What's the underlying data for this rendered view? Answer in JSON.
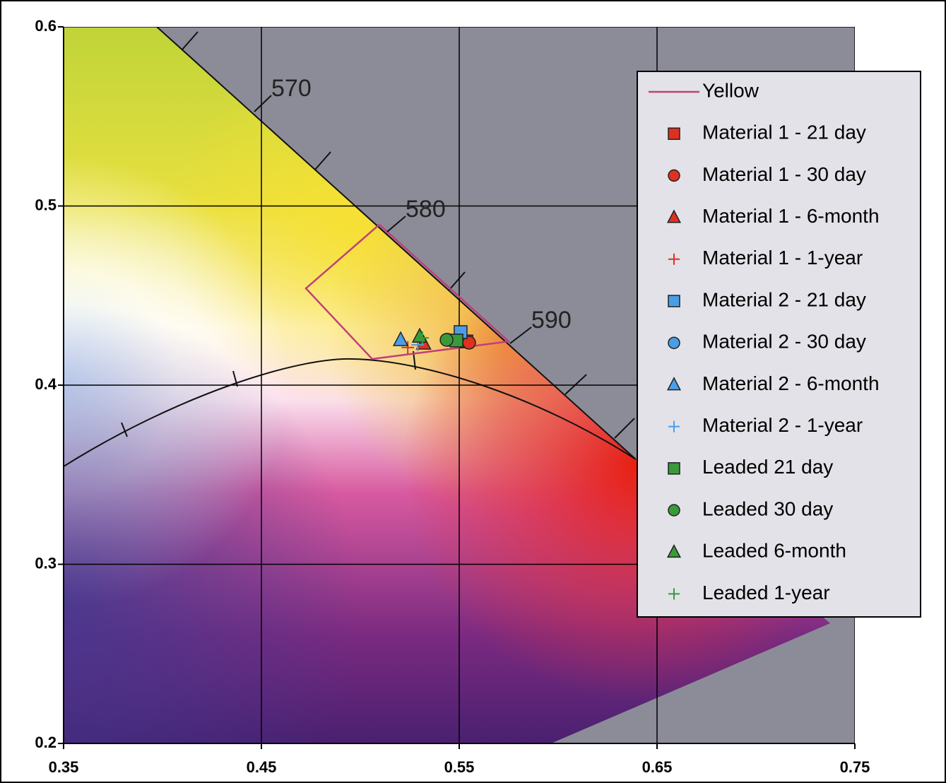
{
  "chart_data": {
    "type": "scatter",
    "xlim": [
      0.35,
      0.75
    ],
    "xticks": [
      0.35,
      0.45,
      0.55,
      0.65,
      0.75
    ],
    "ylim": [
      0.2,
      0.6
    ],
    "yticks": [
      0.2,
      0.3,
      0.4,
      0.5,
      0.6
    ],
    "grid": true,
    "legend": "upper right",
    "annotations": [
      "570",
      "580",
      "590"
    ],
    "series": [
      {
        "name": "Yellow",
        "color": "#c0407a",
        "marker": "line",
        "x": [
          0.5096,
          0.4725,
          0.506,
          0.575,
          0.5096
        ],
        "y": [
          0.4896,
          0.454,
          0.4146,
          0.4244,
          0.4896
        ]
      },
      {
        "name": "Material 1 - 21 day",
        "color": "#e0301f",
        "marker": "square",
        "x": [
          0.5536
        ],
        "y": [
          0.4244
        ]
      },
      {
        "name": "Material 1 - 30 day",
        "color": "#e0301f",
        "marker": "circle",
        "x": [
          0.555
        ],
        "y": [
          0.4237
        ]
      },
      {
        "name": "Material 1 - 6-month",
        "color": "#e0301f",
        "marker": "triangle",
        "x": [
          0.532
        ],
        "y": [
          0.4233
        ]
      },
      {
        "name": "Material 1 - 1-year",
        "color": "#e0301f",
        "marker": "plus",
        "x": [
          0.524
        ],
        "y": [
          0.421
        ]
      },
      {
        "name": "Material 2 - 21 day",
        "color": "#4a9ee8",
        "marker": "square",
        "x": [
          0.5507
        ],
        "y": [
          0.4296
        ]
      },
      {
        "name": "Material 2 - 30 day",
        "color": "#4a9ee8",
        "marker": "circle",
        "x": [
          0.544
        ],
        "y": [
          0.4253
        ]
      },
      {
        "name": "Material 2 - 6-month",
        "color": "#4a9ee8",
        "marker": "triangle",
        "x": [
          0.5204
        ],
        "y": [
          0.4253
        ]
      },
      {
        "name": "Material 2 - 1-year",
        "color": "#4a9ee8",
        "marker": "plus",
        "x": [
          0.529
        ],
        "y": [
          0.4225
        ]
      },
      {
        "name": "Leaded 21 day",
        "color": "#3a9a3a",
        "marker": "square",
        "x": [
          0.5486
        ],
        "y": [
          0.4249
        ]
      },
      {
        "name": "Leaded 30 day",
        "color": "#3a9a3a",
        "marker": "circle",
        "x": [
          0.5436
        ],
        "y": [
          0.4253
        ]
      },
      {
        "name": "Leaded 6-month",
        "color": "#3a9a3a",
        "marker": "triangle",
        "x": [
          0.53
        ],
        "y": [
          0.4272
        ]
      },
      {
        "name": "Leaded 1-year",
        "color": "#3a9a3a",
        "marker": "plus",
        "x": [
          0.5314
        ],
        "y": [
          0.4264
        ]
      }
    ]
  }
}
